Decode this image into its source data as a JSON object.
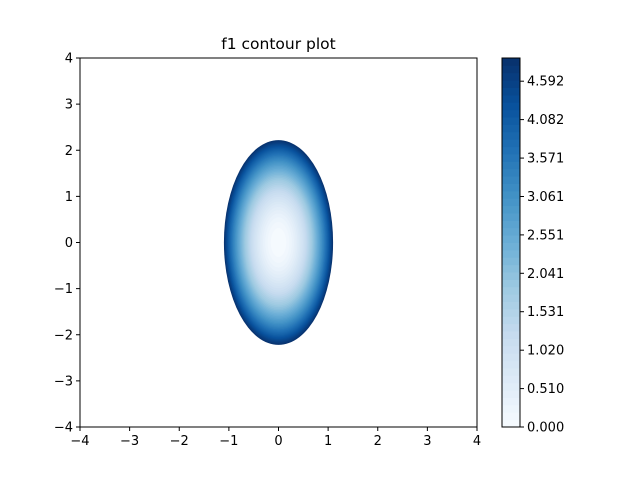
{
  "chart_data": {
    "type": "contour",
    "title": "f1 contour plot",
    "xlabel": "",
    "ylabel": "",
    "xlim": [
      -4,
      4
    ],
    "ylim": [
      -4,
      4
    ],
    "x_ticks": [
      -4,
      -3,
      -2,
      -1,
      0,
      1,
      2,
      3,
      4
    ],
    "y_ticks": [
      -4,
      -3,
      -2,
      -1,
      0,
      1,
      2,
      3,
      4
    ],
    "x_tick_labels": [
      "−4",
      "−3",
      "−2",
      "−1",
      "0",
      "1",
      "2",
      "3",
      "4"
    ],
    "y_tick_labels": [
      "−4",
      "−3",
      "−2",
      "−1",
      "0",
      "1",
      "2",
      "3",
      "4"
    ],
    "grid": false,
    "colormap": "Blues",
    "colormap_start": "#f7fbff",
    "colormap_end": "#08306b",
    "function": "f1(x, y) = 4·x² + y², filled only where value ≤ levels max",
    "filled_region": {
      "center": [
        0,
        0
      ],
      "semi_axis_x": 1.1,
      "semi_axis_y": 2.22
    },
    "levels_min": 0.0,
    "levels_max": 4.9,
    "num_levels": 50,
    "colorbar": {
      "position": "right",
      "ticks": [
        0.0,
        0.51,
        1.02,
        1.531,
        2.041,
        2.551,
        3.061,
        3.571,
        4.082,
        4.592
      ],
      "tick_labels": [
        "0.000",
        "0.510",
        "1.020",
        "1.531",
        "2.041",
        "2.551",
        "3.061",
        "3.571",
        "4.082",
        "4.592"
      ]
    }
  }
}
